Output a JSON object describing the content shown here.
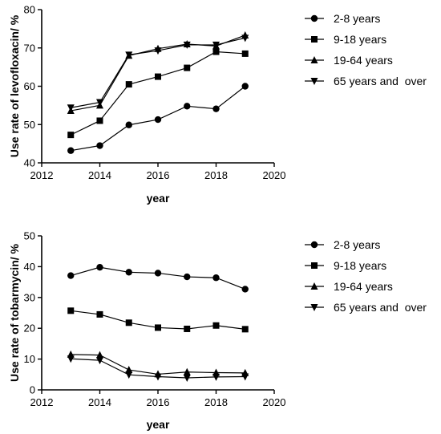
{
  "chart_data": [
    {
      "type": "line",
      "ylabel": "Use rate of levofloxacin/ %",
      "xlabel": "year",
      "xlim": [
        2012,
        2020
      ],
      "ylim": [
        40,
        80
      ],
      "xticks": [
        2012,
        2014,
        2016,
        2018,
        2020
      ],
      "yticks": [
        40,
        50,
        60,
        70,
        80
      ],
      "grid": false,
      "legend_position": "right",
      "x": [
        2013,
        2014,
        2015,
        2016,
        2017,
        2018,
        2019
      ],
      "series": [
        {
          "name": "2-8 years",
          "marker": "circle",
          "values": [
            43.2,
            44.5,
            49.9,
            51.3,
            54.8,
            54.1,
            60.0
          ]
        },
        {
          "name": "9-18 years",
          "marker": "square",
          "values": [
            47.3,
            51.0,
            60.5,
            62.5,
            64.8,
            69.0,
            68.5
          ]
        },
        {
          "name": "19-64 years",
          "marker": "triangle-up",
          "values": [
            53.6,
            55.0,
            68.0,
            69.8,
            71.0,
            70.5,
            73.3
          ]
        },
        {
          "name": "65 years and  over",
          "marker": "triangle-down",
          "values": [
            54.4,
            55.8,
            68.2,
            69.3,
            70.8,
            70.8,
            72.6
          ]
        }
      ]
    },
    {
      "type": "line",
      "ylabel": "Use rate of  tobarmycin/ %",
      "xlabel": "year",
      "xlim": [
        2012,
        2020
      ],
      "ylim": [
        0,
        50
      ],
      "xticks": [
        2012,
        2014,
        2016,
        2018,
        2020
      ],
      "yticks": [
        0,
        10,
        20,
        30,
        40,
        50
      ],
      "grid": false,
      "legend_position": "right",
      "x": [
        2013,
        2014,
        2015,
        2016,
        2017,
        2018,
        2019
      ],
      "series": [
        {
          "name": "2-8 years",
          "marker": "circle",
          "values": [
            37.1,
            39.8,
            38.2,
            37.9,
            36.7,
            36.4,
            32.7
          ]
        },
        {
          "name": "9-18 years",
          "marker": "square",
          "values": [
            25.7,
            24.5,
            21.8,
            20.2,
            19.8,
            20.9,
            19.7
          ]
        },
        {
          "name": "19-64 years",
          "marker": "triangle-up",
          "values": [
            11.5,
            11.3,
            6.5,
            5.1,
            5.8,
            5.6,
            5.5
          ]
        },
        {
          "name": "65 years and  over",
          "marker": "triangle-down",
          "values": [
            10.1,
            9.6,
            4.9,
            4.3,
            3.9,
            4.2,
            4.3
          ]
        }
      ]
    }
  ]
}
